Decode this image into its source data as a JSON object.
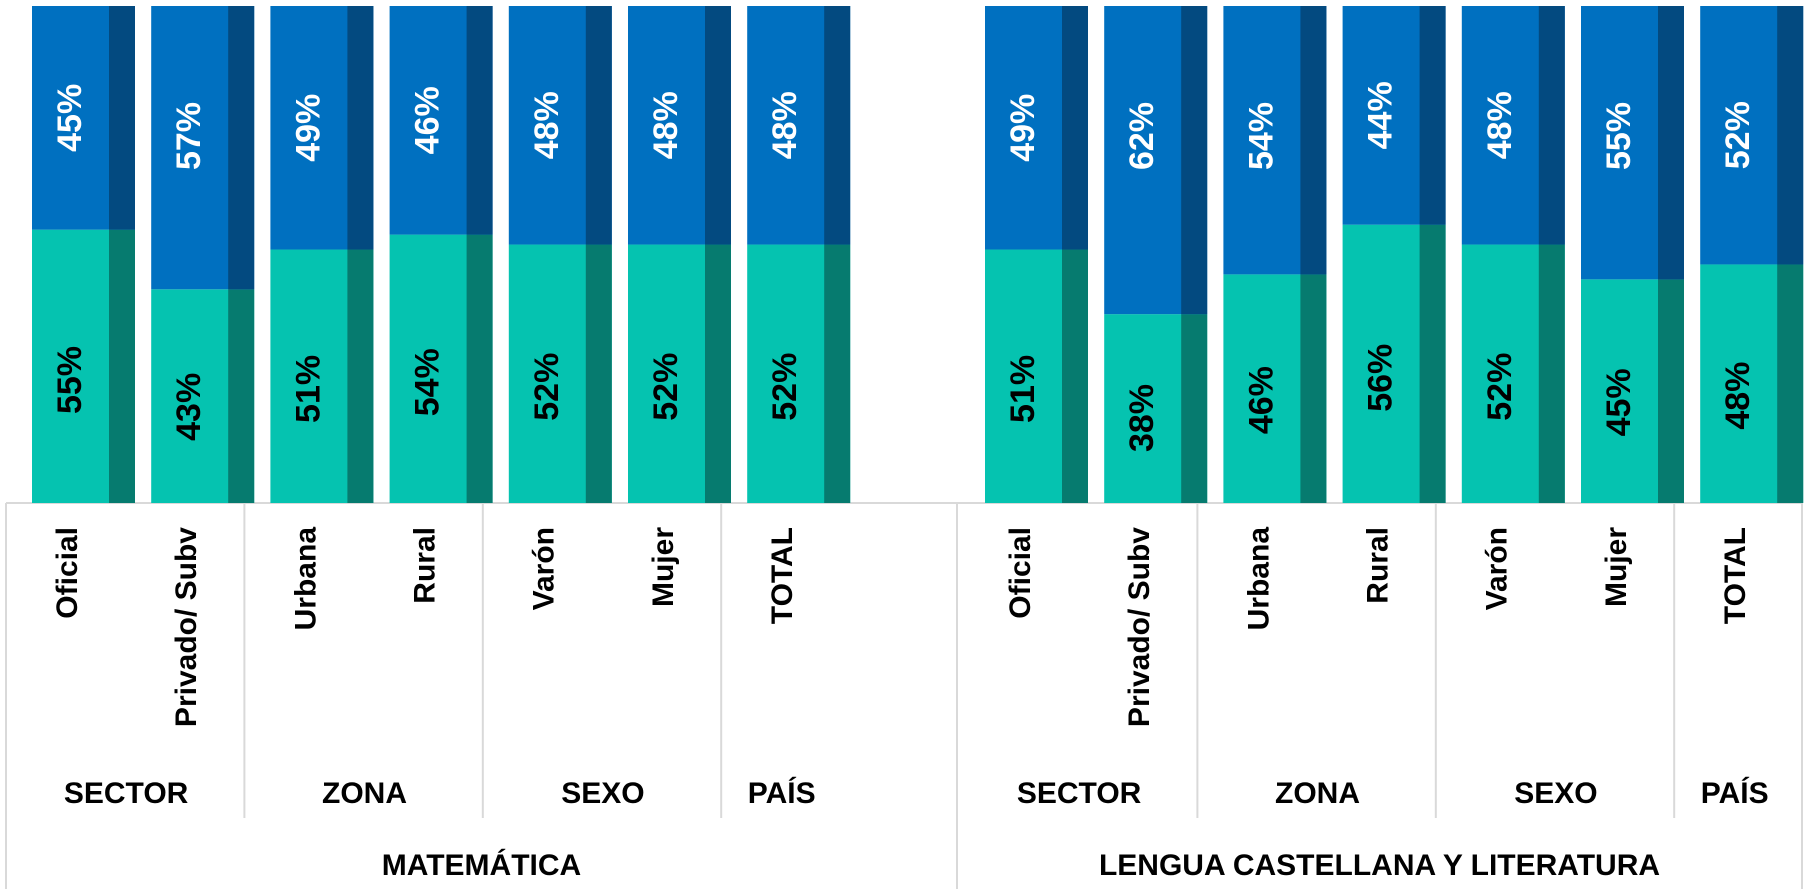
{
  "chart_data": {
    "type": "bar",
    "stacked": true,
    "groups": [
      {
        "label": "MATEMÁTICA",
        "subgroups": [
          {
            "label": "SECTOR",
            "categories": [
              "Oficial",
              "Privado/ Subv"
            ]
          },
          {
            "label": "ZONA",
            "categories": [
              "Urbana",
              "Rural"
            ]
          },
          {
            "label": "SEXO",
            "categories": [
              "Varón",
              "Mujer"
            ]
          },
          {
            "label": "PAÍS",
            "categories": [
              "TOTAL"
            ]
          }
        ]
      },
      {
        "label": "LENGUA CASTELLANA Y LITERATURA",
        "subgroups": [
          {
            "label": "SECTOR",
            "categories": [
              "Oficial",
              "Privado/ Subv"
            ]
          },
          {
            "label": "ZONA",
            "categories": [
              "Urbana",
              "Rural"
            ]
          },
          {
            "label": "SEXO",
            "categories": [
              "Varón",
              "Mujer"
            ]
          },
          {
            "label": "PAÍS",
            "categories": [
              "TOTAL"
            ]
          }
        ]
      }
    ],
    "series": [
      {
        "color": "#05c3b0",
        "shade": "#067b6f",
        "label_color": "#000000",
        "values": [
          55,
          43,
          51,
          54,
          52,
          52,
          52,
          51,
          38,
          46,
          56,
          52,
          45,
          48
        ],
        "value_labels": [
          "55%",
          "43%",
          "51%",
          "54%",
          "52%",
          "52%",
          "52%",
          "51%",
          "38%",
          "46%",
          "56%",
          "52%",
          "45%",
          "48%"
        ]
      },
      {
        "color": "#0070c0",
        "shade": "#034a80",
        "label_color": "#ffffff",
        "values": [
          45,
          57,
          49,
          46,
          48,
          48,
          48,
          49,
          62,
          54,
          44,
          48,
          55,
          52
        ],
        "value_labels": [
          "45%",
          "57%",
          "49%",
          "46%",
          "48%",
          "48%",
          "48%",
          "49%",
          "62%",
          "54%",
          "44%",
          "48%",
          "55%",
          "52%"
        ]
      }
    ],
    "ylim": [
      0,
      100
    ]
  }
}
